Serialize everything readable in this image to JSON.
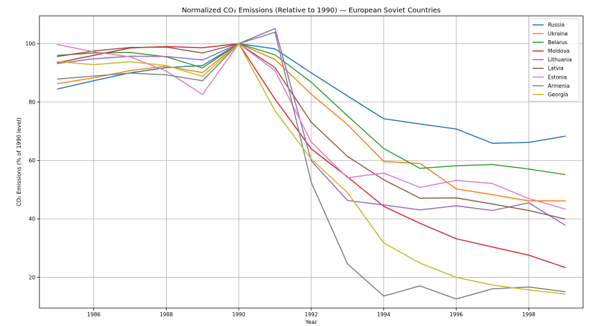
{
  "chart_data": {
    "type": "line",
    "title": "Normalized CO₂ Emissions (Relative to 1990) — European Soviet Countries",
    "xlabel": "Year",
    "ylabel": "CO₂ Emissions (% of 1990 level)",
    "xlim": [
      1984.5,
      1999.5
    ],
    "ylim": [
      9.5,
      109.5
    ],
    "xticks": [
      1986,
      1988,
      1990,
      1992,
      1994,
      1996,
      1998
    ],
    "yticks": [
      20,
      40,
      60,
      80,
      100
    ],
    "grid": true,
    "legend": "top-right",
    "x": [
      1985,
      1986,
      1987,
      1988,
      1989,
      1990,
      1991,
      1992,
      1993,
      1994,
      1995,
      1996,
      1997,
      1998,
      1999
    ],
    "series": [
      {
        "name": "Russia",
        "color": "#1f77b4",
        "values": [
          84.5,
          87.3,
          90.0,
          91.8,
          92.5,
          100.0,
          98.2,
          90.0,
          82.1,
          74.3,
          72.5,
          70.8,
          65.9,
          66.2,
          68.3
        ]
      },
      {
        "name": "Ukraine",
        "color": "#ff7f0e",
        "values": [
          86.3,
          88.3,
          90.8,
          92.3,
          90.1,
          100.0,
          94.6,
          82.7,
          72.3,
          59.7,
          59.0,
          50.3,
          48.3,
          46.2,
          46.2
        ]
      },
      {
        "name": "Belarus",
        "color": "#2ca02c",
        "values": [
          96.0,
          96.8,
          97.0,
          95.5,
          91.7,
          100.0,
          96.2,
          86.8,
          75.3,
          64.1,
          57.3,
          58.2,
          58.6,
          57.1,
          55.2
        ]
      },
      {
        "name": "Moldova",
        "color": "#d62728",
        "values": [
          93.5,
          96.0,
          98.5,
          99.0,
          98.6,
          100.0,
          81.0,
          64.0,
          54.4,
          44.3,
          38.5,
          33.2,
          30.4,
          27.6,
          23.4
        ]
      },
      {
        "name": "Lithuania",
        "color": "#9467bd",
        "values": [
          93.2,
          94.8,
          95.7,
          95.6,
          94.4,
          100.0,
          105.2,
          59.9,
          46.3,
          44.8,
          43.1,
          44.5,
          42.9,
          45.5,
          37.9
        ]
      },
      {
        "name": "Latvia",
        "color": "#8c564b",
        "values": [
          95.6,
          97.5,
          98.7,
          98.8,
          96.8,
          100.0,
          91.8,
          73.1,
          61.4,
          53.4,
          47.1,
          47.2,
          45.1,
          42.9,
          40.0
        ]
      },
      {
        "name": "Estonia",
        "color": "#e377c2",
        "values": [
          99.7,
          97.2,
          95.5,
          90.6,
          82.6,
          100.0,
          90.8,
          66.3,
          54.1,
          55.7,
          50.8,
          53.2,
          52.1,
          47.0,
          43.4
        ]
      },
      {
        "name": "Armenia",
        "color": "#7f7f7f",
        "values": [
          87.9,
          88.9,
          89.9,
          89.3,
          87.3,
          100.0,
          103.9,
          52.5,
          24.6,
          13.6,
          17.1,
          12.6,
          16.1,
          16.7,
          15.1
        ]
      },
      {
        "name": "Georgia",
        "color": "#bcbd22",
        "values": [
          93.8,
          92.8,
          93.8,
          92.5,
          88.8,
          100.0,
          77.0,
          60.5,
          49.0,
          31.8,
          24.9,
          20.0,
          17.4,
          15.7,
          14.3
        ]
      }
    ]
  }
}
